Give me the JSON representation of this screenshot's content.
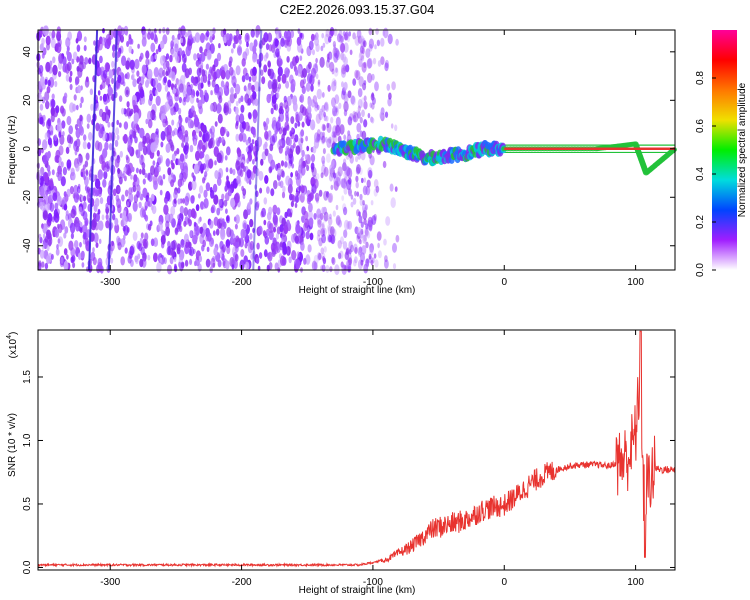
{
  "title": "C2E2.2026.093.15.37.G04",
  "colors": {
    "snr_line": "#e8332f",
    "band_center": "#e8332f",
    "band_edge": "#22c23a",
    "frame": "#000000"
  },
  "chart_data": [
    {
      "type": "heatmap",
      "xlabel": "Height of straight line (km)",
      "ylabel": "Frequency (Hz)",
      "xlim": [
        -355,
        130
      ],
      "ylim": [
        -50,
        49
      ],
      "xticks": [
        -300,
        -200,
        -100,
        0,
        100
      ],
      "xtick_labels": [
        "-300",
        "-200",
        "-100",
        "0",
        "100"
      ],
      "yticks": [
        -40,
        -20,
        0,
        20,
        40
      ],
      "ytick_labels": [
        "-40",
        "-20",
        "0",
        "20",
        "40"
      ],
      "colormap": [
        "#ffffff",
        "#a01eff",
        "#0044ff",
        "#00dddd",
        "#00ee00",
        "#f0e000",
        "#ff7700",
        "#ff0000",
        "#ff0099"
      ],
      "colorbar": {
        "label": "Normalized spectral amplitude",
        "range": [
          0,
          1
        ],
        "ticks": [
          0.0,
          0.2,
          0.4,
          0.6,
          0.8
        ],
        "tick_labels": [
          "0.0",
          "0.2",
          "0.4",
          "0.6",
          "0.8"
        ]
      },
      "noise_region_end_km": -100,
      "signal_track": [
        {
          "x": -130,
          "freq": 0
        },
        {
          "x": -110,
          "freq": 1
        },
        {
          "x": -90,
          "freq": 2
        },
        {
          "x": -75,
          "freq": -1
        },
        {
          "x": -60,
          "freq": -4
        },
        {
          "x": -45,
          "freq": -3
        },
        {
          "x": -30,
          "freq": -2
        },
        {
          "x": -15,
          "freq": 0
        },
        {
          "x": 0,
          "freq": 0
        },
        {
          "x": 70,
          "freq": 0
        },
        {
          "x": 100,
          "freq": 2
        },
        {
          "x": 108,
          "freq": -10
        },
        {
          "x": 130,
          "freq": 0
        }
      ],
      "grid": false
    },
    {
      "type": "line",
      "xlabel": "Height of straight line (km)",
      "ylabel": "SNR (10 * v/v)",
      "yscale_label": "(x10",
      "yscale_exponent": "4",
      "xlim": [
        -355,
        130
      ],
      "ylim": [
        -0.02,
        1.87
      ],
      "xticks": [
        -300,
        -200,
        -100,
        0,
        100
      ],
      "xtick_labels": [
        "-300",
        "-200",
        "-100",
        "0",
        "100"
      ],
      "yticks": [
        0.0,
        0.5,
        1.0,
        1.5
      ],
      "ytick_labels": [
        "0.0",
        "0.5",
        "1.0",
        "1.5"
      ],
      "series": [
        {
          "x": [
            -355,
            -300,
            -250,
            -200,
            -150,
            -110,
            -90,
            -70,
            -55,
            -45,
            -30,
            -15,
            0,
            10,
            20,
            30,
            40,
            50,
            60,
            70,
            80,
            85,
            90,
            95,
            100,
            103,
            106,
            110,
            115,
            120,
            130
          ],
          "y": [
            0.02,
            0.02,
            0.02,
            0.02,
            0.02,
            0.02,
            0.06,
            0.17,
            0.3,
            0.33,
            0.37,
            0.46,
            0.49,
            0.57,
            0.66,
            0.73,
            0.77,
            0.8,
            0.81,
            0.81,
            0.8,
            0.82,
            0.84,
            0.88,
            1.05,
            1.4,
            0.6,
            0.68,
            0.78,
            0.77,
            0.77
          ]
        }
      ],
      "grid": false
    }
  ]
}
